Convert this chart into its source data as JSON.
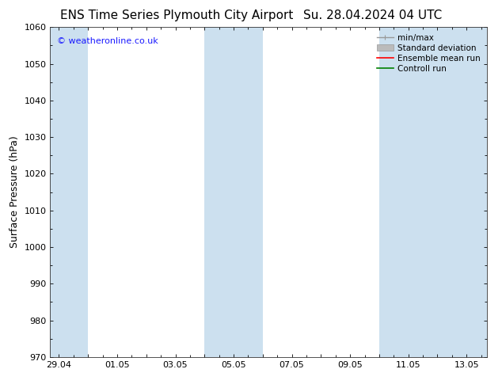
{
  "title_left": "ENS Time Series Plymouth City Airport",
  "title_right": "Su. 28.04.2024 04 UTC",
  "ylabel": "Surface Pressure (hPa)",
  "ylim": [
    970,
    1060
  ],
  "yticks": [
    970,
    980,
    990,
    1000,
    1010,
    1020,
    1030,
    1040,
    1050,
    1060
  ],
  "xlabel_dates": [
    "29.04",
    "01.05",
    "03.05",
    "05.05",
    "07.05",
    "09.05",
    "11.05",
    "13.05"
  ],
  "x_positions": [
    0,
    2,
    4,
    6,
    8,
    10,
    12,
    14
  ],
  "xmin": -0.3,
  "xmax": 14.7,
  "shaded_bands": [
    {
      "x_start": -0.3,
      "x_end": 1.0
    },
    {
      "x_start": 5.0,
      "x_end": 7.0
    },
    {
      "x_start": 11.0,
      "x_end": 14.7
    }
  ],
  "watermark": "© weatheronline.co.uk",
  "watermark_color": "#1a1aff",
  "background_color": "#ffffff",
  "plot_bg_color": "#ffffff",
  "shaded_color": "#cce0ef",
  "legend_labels": [
    "min/max",
    "Standard deviation",
    "Ensemble mean run",
    "Controll run"
  ],
  "legend_colors_line": [
    "#999999",
    "#bbbbbb",
    "#ff0000",
    "#008000"
  ],
  "title_fontsize": 11,
  "tick_label_fontsize": 8,
  "ylabel_fontsize": 9
}
